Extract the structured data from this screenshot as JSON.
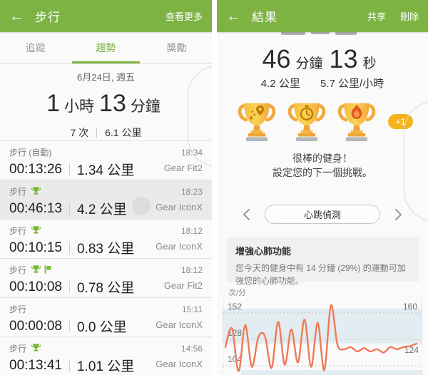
{
  "left_panel": {
    "header": {
      "back_icon": "arrow-left",
      "title": "步行",
      "action": "查看更多"
    },
    "tabs": [
      {
        "label": "追蹤",
        "selected": false
      },
      {
        "label": "趨勢",
        "selected": true
      },
      {
        "label": "獎勵",
        "selected": false
      }
    ],
    "summary": {
      "date": "6月24日, 週五",
      "duration": {
        "hours": "1",
        "hours_unit": "小時",
        "minutes": "13",
        "minutes_unit": "分鐘"
      },
      "stats": {
        "count": "7 次",
        "distance": "6.1 公里"
      }
    },
    "rows": [
      {
        "title": "步行 (自動)",
        "icons": [],
        "duration": "00:13:26",
        "distance": "1.34 公里",
        "time": "18:34",
        "device": "Gear Fit2",
        "selected": false
      },
      {
        "title": "步行",
        "icons": [
          "trophy"
        ],
        "duration": "00:46:13",
        "distance": "4.2 公里",
        "time": "18:23",
        "device": "Gear IconX",
        "selected": true
      },
      {
        "title": "步行",
        "icons": [
          "trophy"
        ],
        "duration": "00:10:15",
        "distance": "0.83 公里",
        "time": "18:12",
        "device": "Gear IconX",
        "selected": false
      },
      {
        "title": "步行",
        "icons": [
          "trophy",
          "flag"
        ],
        "duration": "00:10:08",
        "distance": "0.78 公里",
        "time": "18:12",
        "device": "Gear Fit2",
        "selected": false
      },
      {
        "title": "步行",
        "icons": [],
        "duration": "00:00:08",
        "distance": "0.0 公里",
        "time": "15:11",
        "device": "Gear IconX",
        "selected": false
      },
      {
        "title": "步行",
        "icons": [
          "trophy"
        ],
        "duration": "00:13:41",
        "distance": "1.01 公里",
        "time": "14:56",
        "device": "Gear IconX",
        "selected": false
      }
    ]
  },
  "right_panel": {
    "header": {
      "back_icon": "arrow-left",
      "title": "結果",
      "actions": [
        "共享",
        "刪除"
      ]
    },
    "result": {
      "minutes": "46",
      "minutes_unit": "分鐘",
      "seconds": "13",
      "seconds_unit": "秒",
      "distance": "4.2 公里",
      "speed": "5.7 公里/小時"
    },
    "trophies": {
      "badges": [
        "route-trophy",
        "stopwatch-trophy",
        "flame-trophy"
      ],
      "extra": "+1",
      "message_line1": "很棒的健身！",
      "message_line2": "設定您的下一個挑戰。"
    },
    "carousel": {
      "label": "心跳偵測"
    },
    "insight": {
      "title": "增強心肺功能",
      "body": "您今天的健身中有 14 分鐘 (29%) 的運動可加強您的心肺功能。"
    },
    "chart_data": {
      "type": "line",
      "title": "",
      "ylabel": "次/分",
      "xlabel": "",
      "ylim": [
        96,
        166
      ],
      "y_gridlines": [
        152,
        128,
        104
      ],
      "y_right_max_label": "160",
      "y_end_label": "124",
      "zone_band_bpm": [
        124,
        156
      ],
      "grid": "dashed-horizontal",
      "legend": "none",
      "line_color": "#ee7a58",
      "band_color": "#e3ecf1",
      "values_bpm": [
        121,
        138,
        99,
        141,
        103,
        130,
        131,
        102,
        144,
        105,
        137,
        107,
        146,
        103,
        143,
        100,
        159,
        123,
        119,
        121,
        117,
        120,
        117,
        119,
        116,
        121,
        119,
        121,
        122,
        124
      ]
    }
  },
  "colors": {
    "accent_green": "#7db343",
    "selected_row": "#eaeaea",
    "trophy_gold": "#f5b82e",
    "badge_gold": "#f3b41b"
  }
}
